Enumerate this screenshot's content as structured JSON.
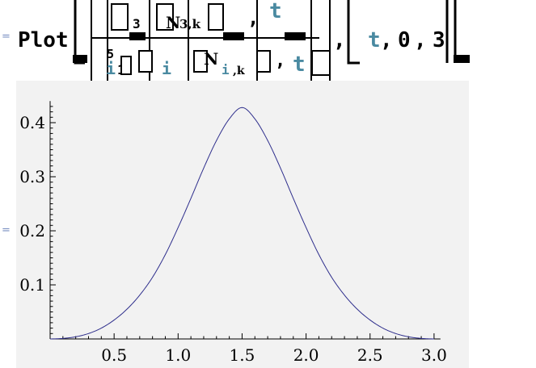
{
  "cell": {
    "input_bracket": "=",
    "output_bracket": "="
  },
  "input": {
    "plot_function": "Plot",
    "numerator_sub": "3",
    "numerator_term": "N",
    "numerator_index": "3,k",
    "numerator_var": "t",
    "denominator_sum_top": "5",
    "denominator_sum_var": "i",
    "denominator_sum_start": "1",
    "denominator_term_i": "i",
    "denominator_term": "N",
    "denominator_index": "i,k",
    "denominator_var": "t",
    "range_var": "t",
    "range_start": "0",
    "range_end": "3",
    "comma": ","
  },
  "chart_data": {
    "type": "line",
    "title": "",
    "xlabel": "",
    "ylabel": "",
    "xlim": [
      0,
      3.0
    ],
    "ylim": [
      0,
      0.43
    ],
    "x_ticks": [
      "0.5",
      "1.0",
      "1.5",
      "2.0",
      "2.5",
      "3.0"
    ],
    "y_ticks": [
      "0.1",
      "0.2",
      "0.3",
      "0.4"
    ],
    "series": [
      {
        "color": "#2e2e8c",
        "x": [
          0.0,
          0.1,
          0.2,
          0.3,
          0.4,
          0.5,
          0.6,
          0.7,
          0.8,
          0.9,
          1.0,
          1.1,
          1.2,
          1.3,
          1.4,
          1.5,
          1.6,
          1.7,
          1.8,
          1.9,
          2.0,
          2.1,
          2.2,
          2.3,
          2.4,
          2.5,
          2.6,
          2.7,
          2.8,
          2.9,
          3.0
        ],
        "y": [
          0.0,
          0.001,
          0.004,
          0.01,
          0.02,
          0.035,
          0.055,
          0.081,
          0.114,
          0.156,
          0.206,
          0.26,
          0.316,
          0.367,
          0.407,
          0.428,
          0.407,
          0.367,
          0.316,
          0.26,
          0.206,
          0.156,
          0.114,
          0.081,
          0.055,
          0.035,
          0.02,
          0.01,
          0.004,
          0.001,
          0.0
        ]
      }
    ],
    "grid": false
  }
}
